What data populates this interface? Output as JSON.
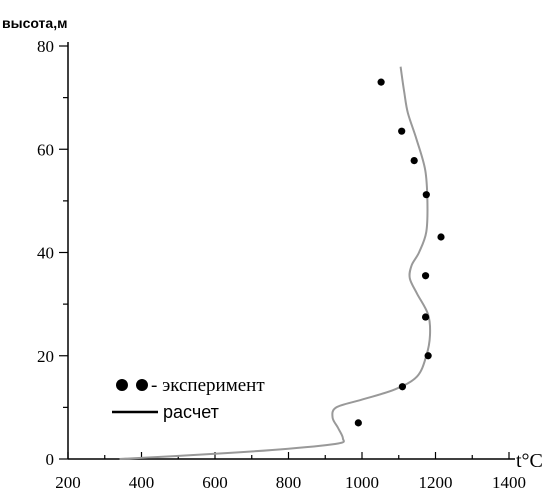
{
  "chart_data": {
    "type": "scatter",
    "ylabel": "высота,м",
    "xlabel": "t°C",
    "xlim": [
      200,
      1400
    ],
    "ylim": [
      0,
      80
    ],
    "xticks": [
      200,
      400,
      600,
      800,
      1000,
      1200,
      1400
    ],
    "yticks": [
      0,
      20,
      40,
      60,
      80
    ],
    "grid": false,
    "legend_position": "bottom-left",
    "series": [
      {
        "name": "эксперимент",
        "kind": "points",
        "color": "#000000",
        "points": [
          {
            "x": 1052,
            "y": 73.0
          },
          {
            "x": 1108,
            "y": 63.5
          },
          {
            "x": 1142,
            "y": 57.8
          },
          {
            "x": 1175,
            "y": 51.2
          },
          {
            "x": 1215,
            "y": 43.0
          },
          {
            "x": 1173,
            "y": 35.5
          },
          {
            "x": 1173,
            "y": 27.5
          },
          {
            "x": 1180,
            "y": 20.0
          },
          {
            "x": 1110,
            "y": 14.0
          },
          {
            "x": 990,
            "y": 7.0
          }
        ]
      },
      {
        "name": "расчет",
        "kind": "line",
        "color": "#999999",
        "points": [
          {
            "x": 340,
            "y": 0.0
          },
          {
            "x": 600,
            "y": 1.0
          },
          {
            "x": 800,
            "y": 2.0
          },
          {
            "x": 935,
            "y": 3.0
          },
          {
            "x": 948,
            "y": 4.0
          },
          {
            "x": 935,
            "y": 6.0
          },
          {
            "x": 920,
            "y": 8.0
          },
          {
            "x": 930,
            "y": 10.0
          },
          {
            "x": 1000,
            "y": 11.5
          },
          {
            "x": 1090,
            "y": 13.5
          },
          {
            "x": 1150,
            "y": 16.0
          },
          {
            "x": 1175,
            "y": 20.0
          },
          {
            "x": 1185,
            "y": 24.0
          },
          {
            "x": 1180,
            "y": 28.0
          },
          {
            "x": 1150,
            "y": 32.0
          },
          {
            "x": 1130,
            "y": 35.0
          },
          {
            "x": 1135,
            "y": 37.5
          },
          {
            "x": 1155,
            "y": 40.0
          },
          {
            "x": 1175,
            "y": 44.0
          },
          {
            "x": 1178,
            "y": 50.0
          },
          {
            "x": 1172,
            "y": 56.0
          },
          {
            "x": 1148,
            "y": 62.0
          },
          {
            "x": 1125,
            "y": 67.0
          },
          {
            "x": 1115,
            "y": 71.0
          },
          {
            "x": 1105,
            "y": 76.0
          }
        ]
      }
    ]
  },
  "legend": {
    "experiment_label": "- эксперимент",
    "calc_label": "расчет"
  }
}
